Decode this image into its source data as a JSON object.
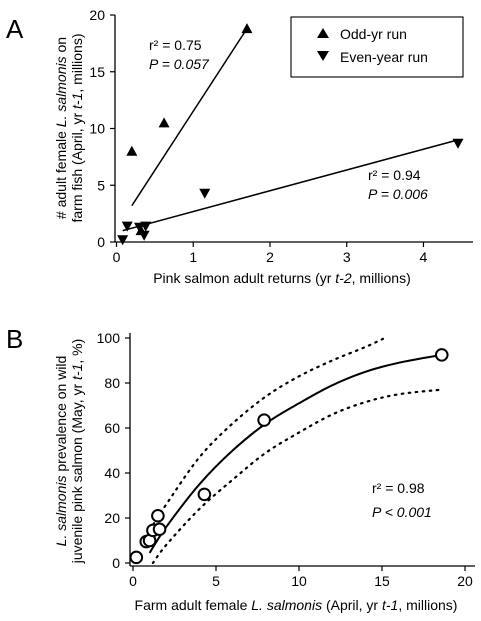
{
  "chart_data": [
    {
      "panel": "A",
      "type": "scatter",
      "xlabel": "Pink salmon adult returns (yr t-2, millions)",
      "ylabel": "# adult female L. salmonis on farm fish (April, yr t-1, millions)",
      "xlim": [
        0,
        4.6
      ],
      "ylim": [
        0,
        20
      ],
      "xticks": [
        "0",
        "1",
        "2",
        "3",
        "4"
      ],
      "yticks": [
        "0",
        "5",
        "10",
        "15",
        "20"
      ],
      "legend_position": "top-right",
      "series": [
        {
          "name": "Odd-yr run",
          "marker": "triangle-up",
          "points": [
            [
              0.2,
              8.0
            ],
            [
              0.32,
              1.0
            ],
            [
              0.62,
              10.5
            ],
            [
              1.7,
              18.8
            ]
          ],
          "fit": {
            "x1": 0.2,
            "y1": 3.2,
            "x2": 1.7,
            "y2": 18.8
          },
          "stat_r2": "r² = 0.75",
          "stat_p": "P = 0.057"
        },
        {
          "name": "Even-year run",
          "marker": "triangle-down",
          "points": [
            [
              0.08,
              0.2
            ],
            [
              0.14,
              1.4
            ],
            [
              0.3,
              1.3
            ],
            [
              0.36,
              0.6
            ],
            [
              0.38,
              1.4
            ],
            [
              1.15,
              4.3
            ],
            [
              4.45,
              8.7
            ]
          ],
          "fit": {
            "x1": 0.08,
            "y1": 1.0,
            "x2": 4.45,
            "y2": 9.0
          },
          "stat_r2": "r² = 0.94",
          "stat_p": "P = 0.006"
        }
      ]
    },
    {
      "panel": "B",
      "type": "scatter",
      "xlabel": "Farm adult female L. salmonis (April, yr t-1, millions)",
      "ylabel": "L. salmonis prevalence on wild juvenile pink salmon (May, yr t-1, %)",
      "xlim": [
        0,
        20
      ],
      "ylim": [
        0,
        100
      ],
      "xticks": [
        "0",
        "5",
        "10",
        "15",
        "20"
      ],
      "yticks": [
        "0",
        "20",
        "40",
        "60",
        "80",
        "100"
      ],
      "points": [
        [
          0.2,
          2.5
        ],
        [
          0.8,
          9.5
        ],
        [
          1.0,
          10.0
        ],
        [
          1.2,
          14.5
        ],
        [
          1.5,
          21.0
        ],
        [
          1.6,
          15.0
        ],
        [
          4.3,
          30.5
        ],
        [
          7.9,
          63.5
        ],
        [
          18.6,
          92.5
        ]
      ],
      "fit_curve": [
        [
          1.0,
          4.5
        ],
        [
          2,
          16
        ],
        [
          4,
          35
        ],
        [
          6,
          50
        ],
        [
          8,
          62
        ],
        [
          10,
          71
        ],
        [
          12,
          79
        ],
        [
          14,
          85
        ],
        [
          16,
          89
        ],
        [
          18.6,
          92.5
        ]
      ],
      "ci_upper": [
        [
          1.0,
          14.5
        ],
        [
          2,
          26
        ],
        [
          4,
          47
        ],
        [
          6,
          62
        ],
        [
          8,
          74
        ],
        [
          10,
          83
        ],
        [
          12,
          90
        ],
        [
          14,
          96
        ],
        [
          15.3,
          100.5
        ]
      ],
      "ci_lower": [
        [
          1.2,
          0
        ],
        [
          2,
          8
        ],
        [
          4,
          24
        ],
        [
          6,
          37
        ],
        [
          8,
          49
        ],
        [
          10,
          58
        ],
        [
          12,
          66
        ],
        [
          14,
          71.5
        ],
        [
          16,
          75
        ],
        [
          18.5,
          77
        ]
      ],
      "stat_r2": "r² = 0.98",
      "stat_p": "P < 0.001"
    }
  ]
}
